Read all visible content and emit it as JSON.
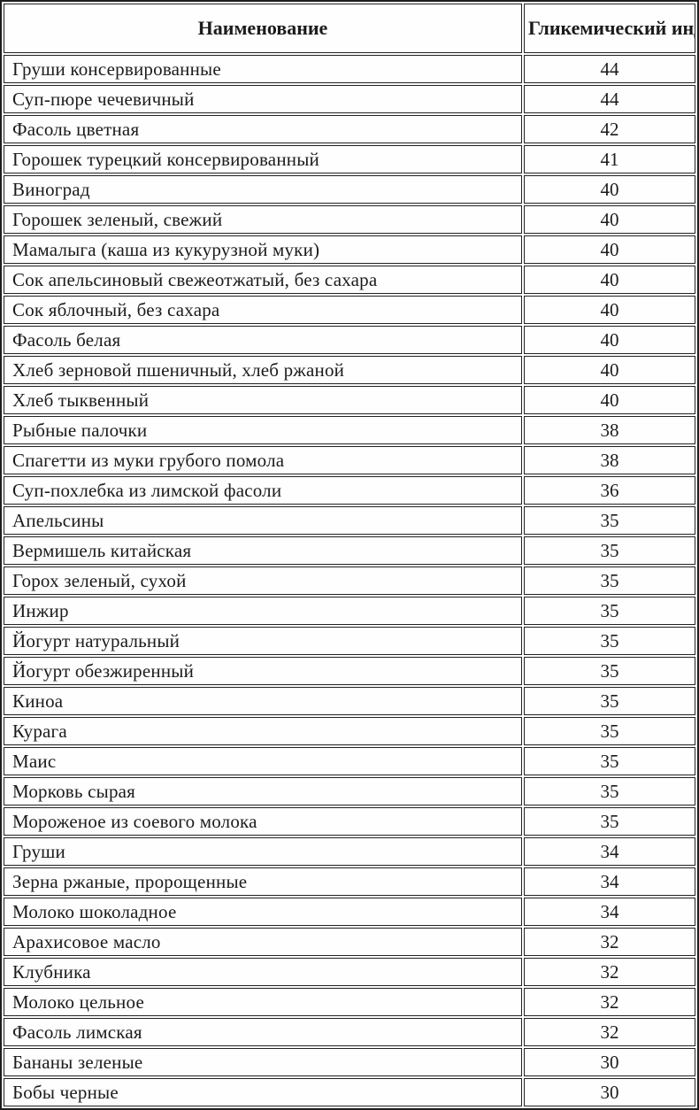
{
  "table": {
    "headers": [
      "Наименование",
      "Гликемический индекс"
    ],
    "rows": [
      {
        "name": "Груши консервированные",
        "gi": "44"
      },
      {
        "name": "Суп-пюре чечевичный",
        "gi": "44"
      },
      {
        "name": "Фасоль цветная",
        "gi": "42"
      },
      {
        "name": "Горошек турецкий консервированный",
        "gi": "41"
      },
      {
        "name": "Виноград",
        "gi": "40"
      },
      {
        "name": "Горошек зеленый, свежий",
        "gi": "40"
      },
      {
        "name": "Мамалыга (каша из кукурузной муки)",
        "gi": "40"
      },
      {
        "name": "Сок апельсиновый свежеотжатый, без сахара",
        "gi": "40"
      },
      {
        "name": "Сок яблочный, без сахара",
        "gi": "40"
      },
      {
        "name": "Фасоль белая",
        "gi": "40"
      },
      {
        "name": "Хлеб зерновой пшеничный, хлеб ржаной",
        "gi": "40"
      },
      {
        "name": "Хлеб тыквенный",
        "gi": "40"
      },
      {
        "name": "Рыбные палочки",
        "gi": "38"
      },
      {
        "name": "Спагетти из муки грубого помола",
        "gi": "38"
      },
      {
        "name": "Суп-похлебка из лимской фасоли",
        "gi": "36"
      },
      {
        "name": "Апельсины",
        "gi": "35"
      },
      {
        "name": "Вермишель китайская",
        "gi": "35"
      },
      {
        "name": "Горох зеленый, сухой",
        "gi": "35"
      },
      {
        "name": "Инжир",
        "gi": "35"
      },
      {
        "name": "Йогурт натуральный",
        "gi": "35"
      },
      {
        "name": "Йогурт обезжиренный",
        "gi": "35"
      },
      {
        "name": "Киноа",
        "gi": "35"
      },
      {
        "name": "Курага",
        "gi": "35"
      },
      {
        "name": "Маис",
        "gi": "35"
      },
      {
        "name": "Морковь сырая",
        "gi": "35"
      },
      {
        "name": "Мороженое из соевого молока",
        "gi": "35"
      },
      {
        "name": "Груши",
        "gi": "34"
      },
      {
        "name": "Зерна ржаные, пророщенные",
        "gi": "34"
      },
      {
        "name": "Молоко шоколадное",
        "gi": "34"
      },
      {
        "name": "Арахисовое масло",
        "gi": "32"
      },
      {
        "name": "Клубника",
        "gi": "32"
      },
      {
        "name": "Молоко цельное",
        "gi": "32"
      },
      {
        "name": "Фасоль лимская",
        "gi": "32"
      },
      {
        "name": "Бананы зеленые",
        "gi": "30"
      },
      {
        "name": "Бобы черные",
        "gi": "30"
      }
    ],
    "colors": {
      "border": "#222222",
      "text": "#1b1b1b",
      "background": "#fdfdfd"
    }
  }
}
